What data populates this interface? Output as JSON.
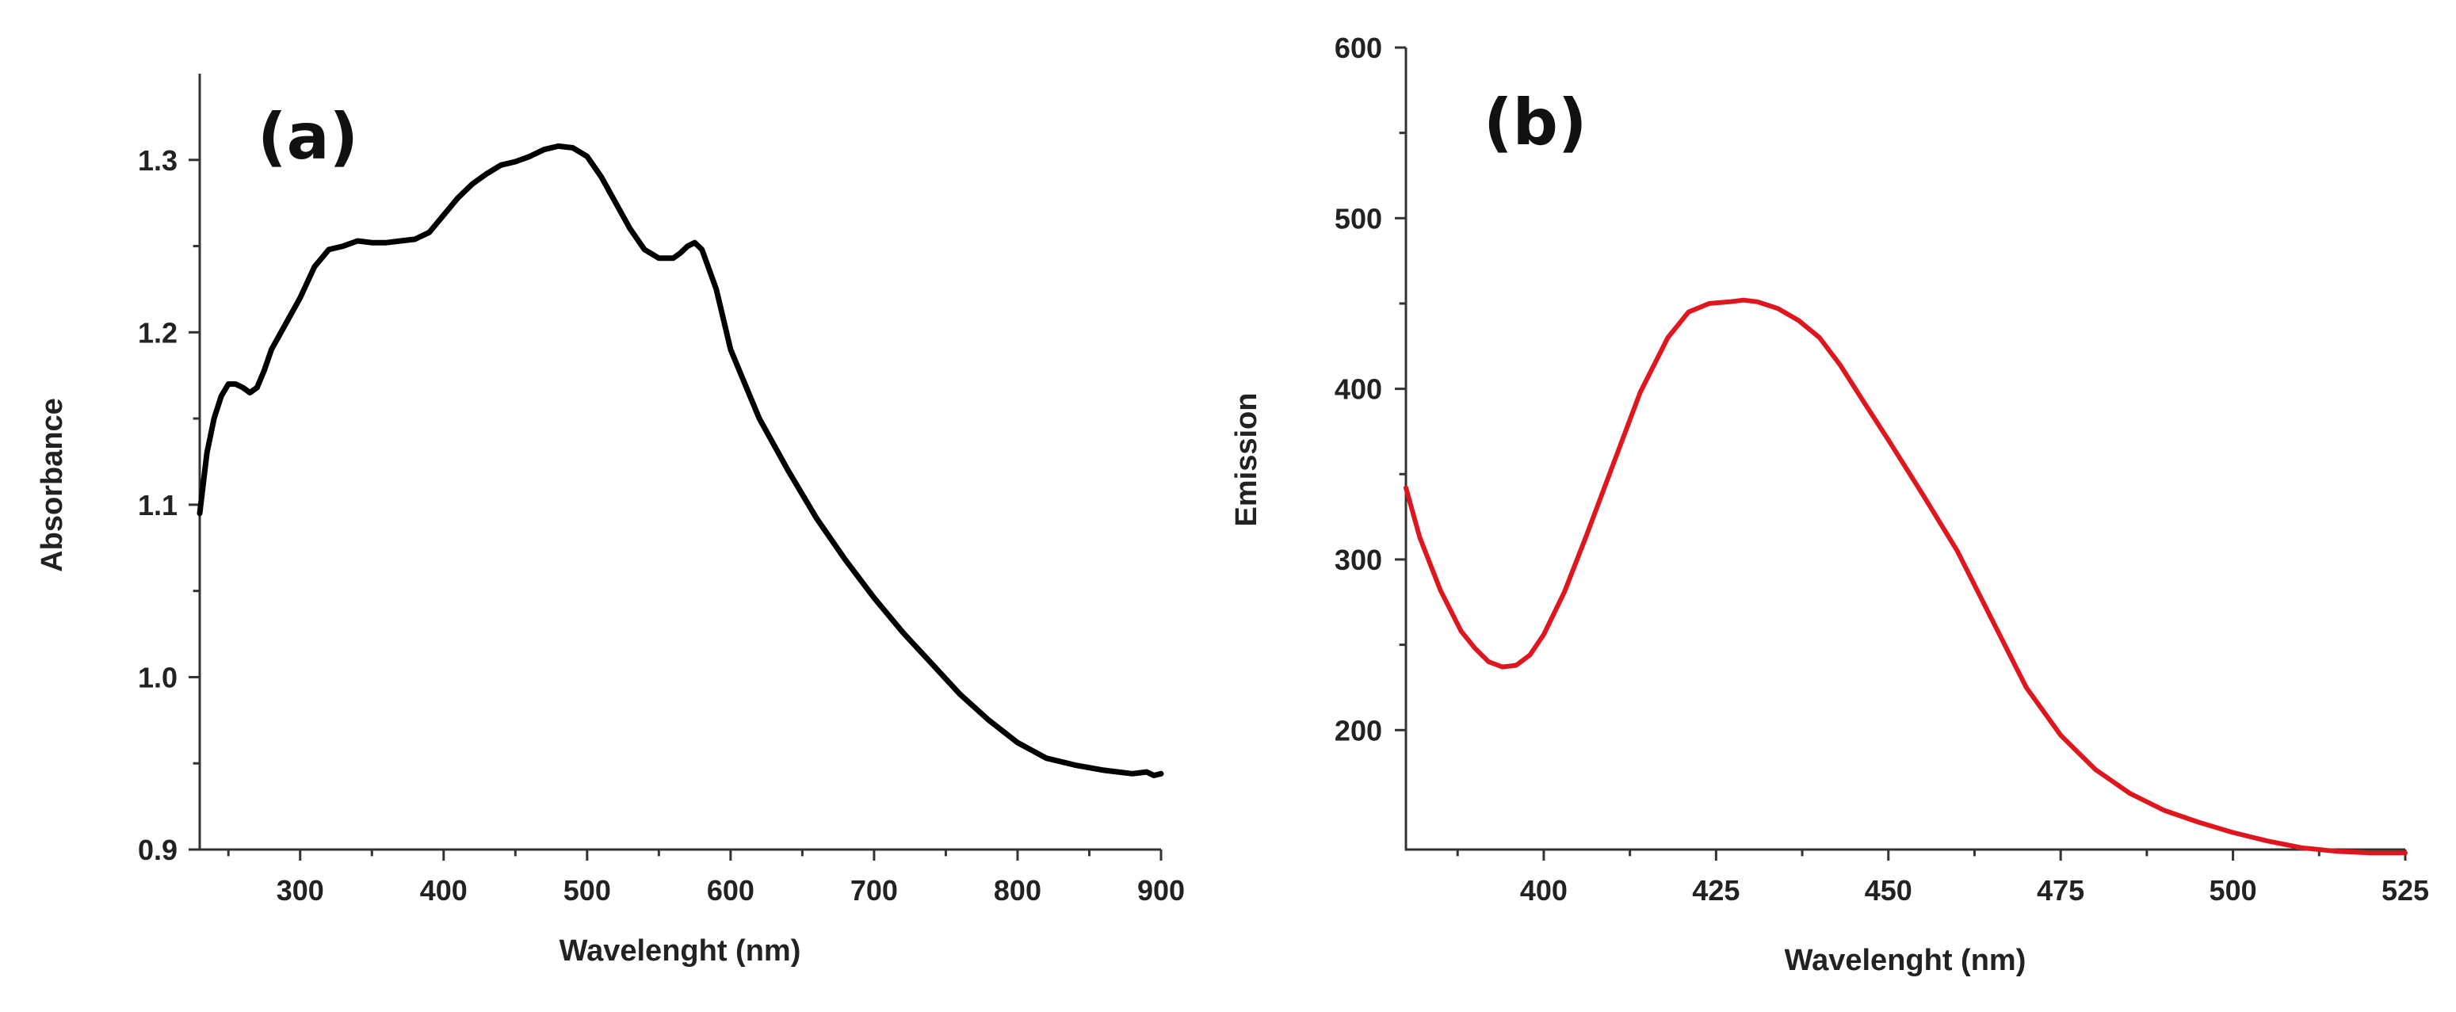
{
  "chart_data": [
    {
      "type": "line",
      "panel_label": "(a)",
      "title": "",
      "xlabel": "Wavelenght (nm)",
      "ylabel": "Absorbance",
      "xlim": [
        230,
        900
      ],
      "ylim": [
        0.9,
        1.35
      ],
      "xticks": [
        300,
        400,
        500,
        600,
        700,
        800,
        900
      ],
      "yticks": [
        0.9,
        1.0,
        1.1,
        1.2,
        1.3
      ],
      "xtick_labels": [
        "300",
        "400",
        "500",
        "600",
        "700",
        "800",
        "900"
      ],
      "ytick_labels": [
        "0.9",
        "1.0",
        "1.1",
        "1.2",
        "1.3"
      ],
      "color": "#000000",
      "series": [
        {
          "name": "Absorbance",
          "x": [
            230,
            235,
            240,
            245,
            250,
            255,
            260,
            265,
            270,
            275,
            280,
            290,
            300,
            310,
            320,
            330,
            340,
            350,
            360,
            370,
            380,
            390,
            400,
            410,
            420,
            430,
            440,
            450,
            460,
            470,
            480,
            490,
            500,
            510,
            520,
            530,
            540,
            550,
            560,
            565,
            570,
            575,
            580,
            590,
            600,
            620,
            640,
            660,
            680,
            700,
            720,
            740,
            760,
            780,
            800,
            820,
            840,
            860,
            880,
            890,
            895,
            900
          ],
          "y": [
            1.095,
            1.13,
            1.15,
            1.163,
            1.17,
            1.17,
            1.168,
            1.165,
            1.168,
            1.178,
            1.19,
            1.205,
            1.22,
            1.238,
            1.248,
            1.25,
            1.253,
            1.252,
            1.252,
            1.253,
            1.254,
            1.258,
            1.268,
            1.278,
            1.286,
            1.292,
            1.297,
            1.299,
            1.302,
            1.306,
            1.308,
            1.307,
            1.302,
            1.29,
            1.275,
            1.26,
            1.248,
            1.243,
            1.243,
            1.246,
            1.25,
            1.252,
            1.248,
            1.225,
            1.19,
            1.15,
            1.12,
            1.092,
            1.068,
            1.046,
            1.026,
            1.008,
            0.99,
            0.975,
            0.962,
            0.953,
            0.949,
            0.946,
            0.944,
            0.945,
            0.943,
            0.944
          ]
        }
      ]
    },
    {
      "type": "line",
      "panel_label": "(b)",
      "title": "",
      "xlabel": "Wavelenght (nm)",
      "ylabel": "Emission",
      "xlim": [
        380,
        525
      ],
      "ylim": [
        130,
        600
      ],
      "xticks": [
        400,
        425,
        450,
        475,
        500,
        525
      ],
      "yticks": [
        200,
        300,
        400,
        500,
        600
      ],
      "xtick_labels": [
        "400",
        "425",
        "450",
        "475",
        "500",
        "525"
      ],
      "ytick_labels": [
        "200",
        "300",
        "400",
        "500",
        "600"
      ],
      "color": "#e0161e",
      "series": [
        {
          "name": "Emission",
          "x": [
            380,
            382,
            385,
            388,
            390,
            392,
            394,
            396,
            398,
            400,
            403,
            406,
            410,
            414,
            418,
            421,
            424,
            427,
            429,
            431,
            434,
            437,
            440,
            443,
            446,
            450,
            455,
            460,
            465,
            470,
            475,
            480,
            485,
            490,
            495,
            500,
            505,
            510,
            515,
            520,
            525
          ],
          "y": [
            342,
            313,
            282,
            258,
            248,
            240,
            237,
            238,
            244,
            256,
            281,
            312,
            355,
            398,
            430,
            445,
            450,
            451,
            452,
            451,
            447,
            440,
            430,
            414,
            395,
            370,
            338,
            305,
            265,
            225,
            197,
            177,
            163,
            153,
            146,
            140,
            135,
            131,
            129,
            128,
            128
          ]
        }
      ]
    }
  ]
}
